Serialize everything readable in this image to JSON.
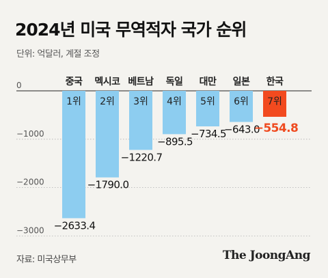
{
  "header": {
    "title": "2024년 미국 무역적자 국가 순위",
    "unit_note": "단위: 억달러, 계절 조정"
  },
  "footer": {
    "source": "자료: 미국상무부",
    "brand": "The JoongAng"
  },
  "colors": {
    "bar": "#8dcdf0",
    "highlight": "#f24a1f",
    "gridline": "#b0b0b0"
  },
  "chart_data": {
    "type": "bar",
    "categories": [
      "중국",
      "멕시코",
      "베트남",
      "독일",
      "대만",
      "일본",
      "한국"
    ],
    "ranks": [
      "1위",
      "2위",
      "3위",
      "4위",
      "5위",
      "6위",
      "7위"
    ],
    "values": [
      -2633.4,
      -1790.0,
      -1220.7,
      -895.5,
      -734.5,
      -643.0,
      -554.8
    ],
    "value_labels": [
      "−2633.4",
      "−1790.0",
      "−1220.7",
      "−895.5",
      "−734.5",
      "−643.0",
      "−554.8"
    ],
    "highlight_category": "한국",
    "yticks": [
      0,
      -1000,
      -2000,
      -3000
    ],
    "ytick_labels": [
      "0",
      "−1000",
      "−2000",
      "−3000"
    ],
    "ylim": [
      -3000,
      0
    ],
    "grid": false
  }
}
